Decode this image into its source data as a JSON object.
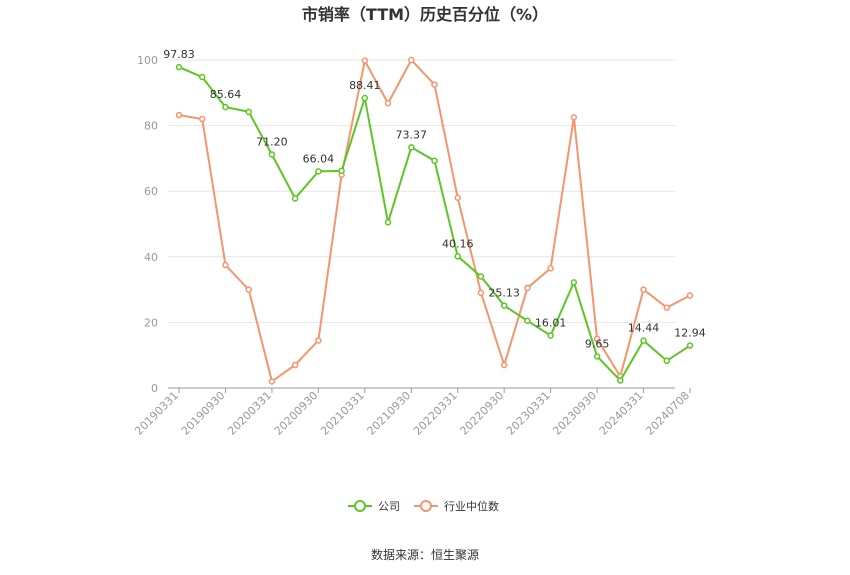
{
  "chart_data": {
    "type": "line",
    "title": "市销率（TTM）历史百分位（%）",
    "xlabel": "",
    "ylabel": "",
    "ylim": [
      0,
      100
    ],
    "yticks": [
      0,
      20,
      40,
      60,
      80,
      100
    ],
    "grid": true,
    "legend_position": "bottom",
    "x": [
      "20190331",
      "20190630",
      "20190930",
      "20191231",
      "20200331",
      "20200630",
      "20200930",
      "20201231",
      "20210331",
      "20210630",
      "20210930",
      "20211231",
      "20220331",
      "20220630",
      "20220930",
      "20221231",
      "20230331",
      "20230630",
      "20230930",
      "20231231",
      "20240331",
      "20240630",
      "20240708"
    ],
    "x_tick_labels": [
      "20190331",
      "20190930",
      "20200331",
      "20200930",
      "20210331",
      "20210930",
      "20220331",
      "20220930",
      "20230331",
      "20230930",
      "20240331",
      "20240708"
    ],
    "series": [
      {
        "name": "公司",
        "color": "#5cc724",
        "values": [
          97.83,
          94.8,
          85.64,
          84.2,
          71.2,
          57.8,
          66.04,
          66.2,
          88.41,
          50.5,
          73.37,
          69.3,
          40.16,
          34.0,
          25.13,
          20.5,
          16.01,
          32.2,
          9.65,
          2.3,
          14.44,
          8.3,
          12.94
        ],
        "labels": [
          "97.83",
          null,
          "85.64",
          null,
          "71.20",
          null,
          "66.04",
          null,
          "88.41",
          null,
          "73.37",
          null,
          "40.16",
          null,
          "25.13",
          null,
          "16.01",
          null,
          "9.65",
          null,
          "14.44",
          null,
          "12.94"
        ]
      },
      {
        "name": "行业中位数",
        "color": "#f4956c",
        "values": [
          83.2,
          82.0,
          37.5,
          30.0,
          2.0,
          7.0,
          14.5,
          65.0,
          99.8,
          86.8,
          100.0,
          92.5,
          58.0,
          29.0,
          7.0,
          30.5,
          36.5,
          82.5,
          15.0,
          3.5,
          30.0,
          24.5,
          28.2
        ]
      }
    ]
  },
  "legend": {
    "items": [
      {
        "label": "公司",
        "color": "#5cc724"
      },
      {
        "label": "行业中位数",
        "color": "#f4956c"
      }
    ]
  },
  "source": "数据来源：恒生聚源"
}
